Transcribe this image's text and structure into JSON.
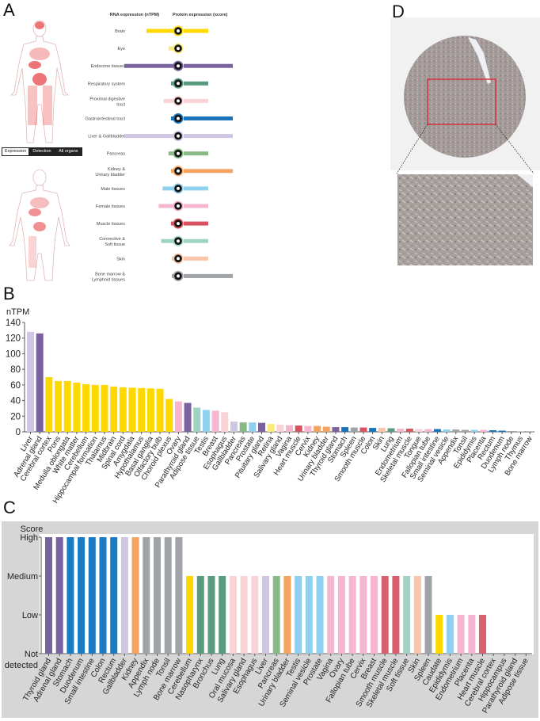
{
  "panels": {
    "a": "A",
    "b": "B",
    "c": "C",
    "d": "D"
  },
  "panel_a": {
    "rna_header": "RNA expression (nTPM)",
    "protein_header": "Protein expression (score)",
    "toggle": [
      "Expression",
      "Detection",
      "All organs"
    ],
    "toggle_selected": "Expression",
    "rows": [
      {
        "label": "Brain",
        "color": "#ffd800",
        "rna": 0.55,
        "protein": 0.5
      },
      {
        "label": "Eye",
        "color": "#fbe97a",
        "rna": 0.1,
        "protein": 0
      },
      {
        "label": "Endocrine tissues",
        "color": "#7a62a0",
        "rna": 1.0,
        "protein": 1.0
      },
      {
        "label": "Respiratory system",
        "color": "#5a9a7e",
        "rna": 0.05,
        "protein": 0.5
      },
      {
        "label": "Proximal digestive tract",
        "color": "#f9d3d6",
        "rna": 0.2,
        "protein": 0.5
      },
      {
        "label": "Gastrointestinal tract",
        "color": "#1a73b8",
        "rna": 0.05,
        "protein": 1.0
      },
      {
        "label": "Liver & Gallbladder",
        "color": "#cfc6e3",
        "rna": 1.0,
        "protein": 1.0
      },
      {
        "label": "Pancreas",
        "color": "#89b985",
        "rna": 0.1,
        "protein": 0.5
      },
      {
        "label": "Kidney & Urinary bladder",
        "color": "#f4a460",
        "rna": 0.05,
        "protein": 1.0
      },
      {
        "label": "Male tissues",
        "color": "#8fd0ef",
        "rna": 0.22,
        "protein": 0.5
      },
      {
        "label": "Female tissues",
        "color": "#f7b6cf",
        "rna": 0.3,
        "protein": 0.5
      },
      {
        "label": "Muscle tissues",
        "color": "#d9515e",
        "rna": 0.05,
        "protein": 0.5
      },
      {
        "label": "Connective & Soft tissue",
        "color": "#9fd4c4",
        "rna": 0.25,
        "protein": 0.5
      },
      {
        "label": "Skin",
        "color": "#f9c4a8",
        "rna": 0.03,
        "protein": 0.5
      },
      {
        "label": "Bone marrow & Lymphoid tissues",
        "color": "#a0a4a8",
        "rna": 0.03,
        "protein": 1.0
      }
    ]
  },
  "chart_data": [
    {
      "type": "bar",
      "ylabel": "nTPM",
      "ylim": [
        0,
        140
      ],
      "yticks": [
        0,
        20,
        40,
        60,
        80,
        100,
        120,
        140
      ],
      "categories": [
        "Liver",
        "Adrenal gland",
        "Cerebral cortex",
        "Pons",
        "Medulla oblongata",
        "White matter",
        "Cerebellum",
        "Hippocampal formation",
        "Thalamus",
        "Midbrain",
        "Spinal cord",
        "Amygdala",
        "Hypothalamus",
        "Basal ganglia",
        "Olfactory bulb",
        "Choroid plexus",
        "Ovary",
        "Parathyroid gland",
        "Adipose tissue",
        "Testis",
        "Breast",
        "Esophagus",
        "Gallbladder",
        "Pancreas",
        "Prostate",
        "Pituitary gland",
        "Retina",
        "Salivary gland",
        "Vagina",
        "Heart muscle",
        "Cervix",
        "Kidney",
        "Urinary bladder",
        "Thyroid gland",
        "Stomach",
        "Spleen",
        "Smooth muscle",
        "Colon",
        "Skin",
        "Lung",
        "Endometrium",
        "Skeletal muscle",
        "Tongue",
        "Fallopian tube",
        "Small intestine",
        "Seminal vesicle",
        "Appendix",
        "Tonsil",
        "Epididymis",
        "Placenta",
        "Rectum",
        "Duodenum",
        "Lymph node",
        "Thymus",
        "Bone marrow"
      ],
      "values": [
        128,
        126,
        70,
        65,
        65,
        63,
        61,
        60,
        60,
        58,
        57,
        56.5,
        56,
        55.5,
        55,
        42,
        39,
        37,
        31,
        28,
        27,
        25,
        13,
        12,
        12,
        11.5,
        10,
        9,
        8.5,
        8,
        7.5,
        7.5,
        6.5,
        6,
        6,
        5.5,
        5.5,
        5,
        5,
        4.5,
        4,
        4,
        3.5,
        3.5,
        3.5,
        3,
        3,
        2.5,
        2.5,
        2.5,
        2,
        1.5,
        1,
        0.5,
        0.3
      ],
      "colors": [
        "#cfc6e3",
        "#7a62a0",
        "#ffd800",
        "#ffd800",
        "#ffd800",
        "#ffd800",
        "#ffd800",
        "#ffd800",
        "#ffd800",
        "#ffd800",
        "#ffd800",
        "#ffd800",
        "#ffd800",
        "#ffd800",
        "#ffd800",
        "#ffd800",
        "#f7b6cf",
        "#7a62a0",
        "#9fd4c4",
        "#8fd0ef",
        "#f7b6cf",
        "#f9d3d6",
        "#cfc6e3",
        "#89b985",
        "#8fd0ef",
        "#7a62a0",
        "#fbe97a",
        "#f9d3d6",
        "#f7b6cf",
        "#d9515e",
        "#f7b6cf",
        "#f4a460",
        "#f4a460",
        "#7a62a0",
        "#1a73b8",
        "#a0a4a8",
        "#d9515e",
        "#1a73b8",
        "#f9c4a8",
        "#5a9a7e",
        "#f7b6cf",
        "#d9515e",
        "#f9d3d6",
        "#f7b6cf",
        "#1a73b8",
        "#8fd0ef",
        "#a0a4a8",
        "#a0a4a8",
        "#8fd0ef",
        "#f7b6cf",
        "#1a73b8",
        "#1a73b8",
        "#a0a4a8",
        "#a0a4a8",
        "#a0a4a8"
      ]
    },
    {
      "type": "bar",
      "ylabel": "Score",
      "levels": [
        "Not detected",
        "Low",
        "Medium",
        "High"
      ],
      "categories": [
        "Thyroid gland",
        "Adrenal gland",
        "Stomach",
        "Duodenum",
        "Small intestine",
        "Colon",
        "Rectum",
        "Gallbladder",
        "Kidney",
        "Appendix",
        "Lymph node",
        "Tonsil",
        "Bone marrow",
        "Cerebellum",
        "Nasopharynx",
        "Bronchus",
        "Lung",
        "Oral mucosa",
        "Salivary gland",
        "Esophagus",
        "Liver",
        "Pancreas",
        "Urinary bladder",
        "Testis",
        "Seminal vesicle",
        "Prostate",
        "Vagina",
        "Ovary",
        "Fallopian tube",
        "Cervix",
        "Breast",
        "Smooth muscle",
        "Skeletal muscle",
        "Soft tissue",
        "Skin",
        "Spleen",
        "Caudate",
        "Epididymis",
        "Endometrium",
        "Placenta",
        "Heart muscle",
        "Cerebral cortex",
        "Hippocampus",
        "Parathyroid gland",
        "Adipose tissue"
      ],
      "values": [
        "High",
        "High",
        "High",
        "High",
        "High",
        "High",
        "High",
        "High",
        "High",
        "High",
        "High",
        "High",
        "High",
        "Medium",
        "Medium",
        "Medium",
        "Medium",
        "Medium",
        "Medium",
        "Medium",
        "Medium",
        "Medium",
        "Medium",
        "Medium",
        "Medium",
        "Medium",
        "Medium",
        "Medium",
        "Medium",
        "Medium",
        "Medium",
        "Medium",
        "Medium",
        "Medium",
        "Medium",
        "Medium",
        "Low",
        "Low",
        "Low",
        "Low",
        "Low",
        "Not detected",
        "Not detected",
        "Not detected",
        "Not detected"
      ],
      "colors": [
        "#7a62a0",
        "#7a62a0",
        "#1a7ac4",
        "#1a7ac4",
        "#1a7ac4",
        "#1a7ac4",
        "#1a7ac4",
        "#cfc6e3",
        "#f4a460",
        "#a0a4a8",
        "#a0a4a8",
        "#a0a4a8",
        "#a0a4a8",
        "#ffd800",
        "#5a9a7e",
        "#5a9a7e",
        "#5a9a7e",
        "#f9d3d6",
        "#f9d3d6",
        "#f9d3d6",
        "#cfc6e3",
        "#89b985",
        "#f4a460",
        "#8fd0ef",
        "#8fd0ef",
        "#8fd0ef",
        "#f7b6cf",
        "#f7b6cf",
        "#f7b6cf",
        "#f7b6cf",
        "#f7b6cf",
        "#d9606e",
        "#d9606e",
        "#9fd4c4",
        "#f9c4a8",
        "#a0a4a8",
        "#ffd800",
        "#8fd0ef",
        "#f7b6cf",
        "#f7b6cf",
        "#d9606e",
        "#d9606e",
        "#d9606e",
        "#d9606e",
        "#d9606e"
      ],
      "background": "#d6d6d6"
    }
  ]
}
